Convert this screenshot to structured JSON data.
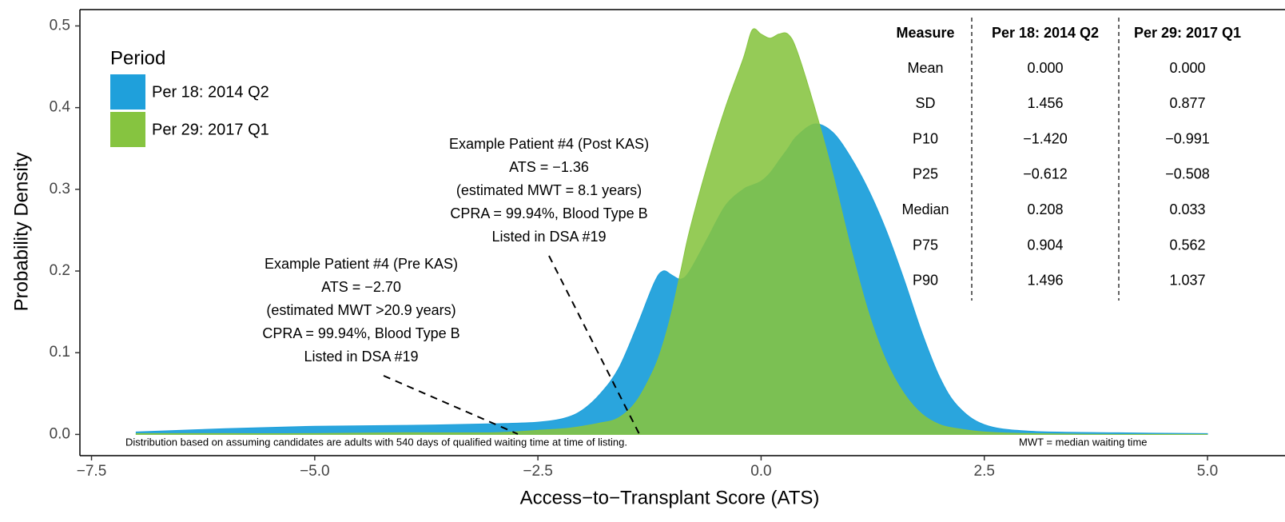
{
  "chart_data": {
    "type": "area",
    "x_label": "Access−to−Transplant Score (ATS)",
    "y_label": "Probability Density",
    "legend_title": "Period",
    "legend": "upper left",
    "xlim": [
      -7.63,
      5.51
    ],
    "ylim": [
      -0.026,
      0.52
    ],
    "xticks": [
      {
        "value": -7.5,
        "label": "−7.5"
      },
      {
        "value": -5,
        "label": "−5.0"
      },
      {
        "value": -2.5,
        "label": "−2.5"
      },
      {
        "value": 0,
        "label": "0.0"
      },
      2.5,
      {
        "value": 5,
        "label": "5.0"
      }
    ],
    "yticks": [
      {
        "value": 0,
        "label": "0.0"
      },
      0.1,
      0.2,
      0.3,
      0.4,
      0.5
    ],
    "x": [
      -7,
      -6,
      -5,
      -4,
      -3,
      -2.5,
      -2.2,
      -2,
      -1.8,
      -1.6,
      -1.4,
      -1.2,
      -1.1,
      -1,
      -0.9,
      -0.8,
      -0.6,
      -0.4,
      -0.2,
      -0.1,
      0,
      0.1,
      0.2,
      0.3,
      0.4,
      0.6,
      0.8,
      1,
      1.2,
      1.4,
      1.6,
      1.8,
      2,
      2.2,
      2.5,
      3,
      4,
      5
    ],
    "series": [
      {
        "name": "Per 18: 2014 Q2",
        "color": "#1fa0db",
        "values": [
          0.003,
          0.007,
          0.01,
          0.011,
          0.013,
          0.015,
          0.02,
          0.03,
          0.05,
          0.08,
          0.13,
          0.185,
          0.2,
          0.195,
          0.19,
          0.2,
          0.24,
          0.28,
          0.3,
          0.305,
          0.31,
          0.32,
          0.335,
          0.35,
          0.365,
          0.38,
          0.37,
          0.34,
          0.3,
          0.25,
          0.19,
          0.125,
          0.07,
          0.035,
          0.012,
          0.004,
          0.002,
          0.001
        ]
      },
      {
        "name": "Per 29: 2017 Q1",
        "color": "#86c440",
        "values": [
          0.001,
          0.001,
          0.001,
          0.002,
          0.002,
          0.005,
          0.007,
          0.01,
          0.014,
          0.02,
          0.04,
          0.08,
          0.11,
          0.15,
          0.2,
          0.25,
          0.33,
          0.4,
          0.46,
          0.495,
          0.49,
          0.485,
          0.49,
          0.49,
          0.47,
          0.4,
          0.32,
          0.23,
          0.15,
          0.09,
          0.05,
          0.025,
          0.012,
          0.007,
          0.003,
          0.001,
          0,
          0
        ]
      }
    ],
    "annotations": [
      {
        "lines": [
          "Example Patient #4 (Post KAS)",
          "ATS = −1.36",
          "(estimated MWT = 8.1 years)",
          "CPRA = 99.94%, Blood Type B",
          "Listed in DSA #19"
        ]
      },
      {
        "lines": [
          "Example Patient #4 (Pre KAS)",
          "ATS = −2.70",
          "(estimated MWT >20.9 years)",
          "CPRA = 99.94%, Blood Type B",
          "Listed in DSA #19"
        ]
      }
    ],
    "table": {
      "header": [
        "Measure",
        "Per 18: 2014 Q2",
        "Per 29: 2017 Q1"
      ],
      "rows": [
        [
          "Mean",
          "0.000",
          "0.000"
        ],
        [
          "SD",
          "1.456",
          "0.877"
        ],
        [
          "P10",
          "−1.420",
          "−0.991"
        ],
        [
          "P25",
          "−0.612",
          "−0.508"
        ],
        [
          "Median",
          "0.208",
          "0.033"
        ],
        [
          "P75",
          "0.904",
          "0.562"
        ],
        [
          "P90",
          "1.496",
          "1.037"
        ]
      ]
    },
    "footnotes": [
      "Distribution based on assuming candidates are adults with 540 days of qualified waiting time at time of listing.",
      "MWT = median waiting time"
    ]
  }
}
